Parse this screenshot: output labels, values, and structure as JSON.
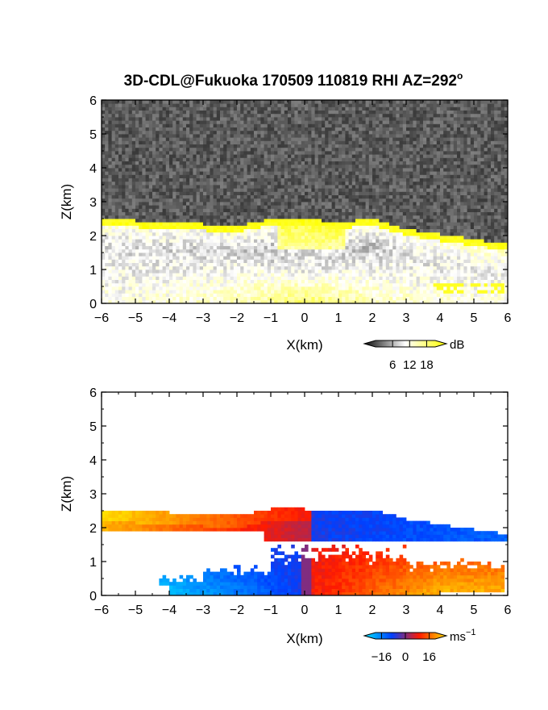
{
  "figure": {
    "title": "3D-CDL@Fukuoka 170509 110819 RHI AZ=292",
    "title_superscript": "o"
  },
  "chart_data": [
    {
      "type": "heatmap",
      "panel": "top",
      "quantity": "intensity",
      "xlabel": "X(km)",
      "ylabel": "Z(km)",
      "xlim": [
        -6,
        6
      ],
      "ylim": [
        0,
        6
      ],
      "x_ticks": [
        -6,
        -5,
        -4,
        -3,
        -2,
        -1,
        0,
        1,
        2,
        3,
        4,
        5,
        6
      ],
      "y_ticks": [
        0,
        1,
        2,
        3,
        4,
        5,
        6
      ],
      "colorbar": {
        "unit": "dB",
        "tick_labels": [
          "6",
          "12",
          "18"
        ],
        "tick_values": [
          6,
          12,
          18
        ],
        "range": [
          0,
          21
        ],
        "colors": [
          "#0a0a0a",
          "#ffffff",
          "#ffff00"
        ]
      },
      "layer_top_km": [
        [
          -6,
          2.5
        ],
        [
          -4,
          2.4
        ],
        [
          -2,
          2.3
        ],
        [
          -1,
          2.5
        ],
        [
          0,
          2.5
        ],
        [
          1,
          2.4
        ],
        [
          2,
          2.5
        ],
        [
          3,
          2.2
        ],
        [
          4,
          2.05
        ],
        [
          5,
          1.9
        ],
        [
          6,
          1.75
        ]
      ],
      "saturated_layer_thickness_km": 0.15,
      "cloud_blob_km": {
        "x": [
          -0.8,
          1.2
        ],
        "z": [
          1.6,
          2.5
        ]
      }
    },
    {
      "type": "heatmap",
      "panel": "bottom",
      "quantity": "radial velocity",
      "xlabel": "X(km)",
      "ylabel": "Z(km)",
      "xlim": [
        -6,
        6
      ],
      "ylim": [
        0,
        6
      ],
      "x_ticks": [
        -6,
        -5,
        -4,
        -3,
        -2,
        -1,
        0,
        1,
        2,
        3,
        4,
        5,
        6
      ],
      "y_ticks": [
        0,
        1,
        2,
        3,
        4,
        5,
        6
      ],
      "colorbar": {
        "unit": "ms",
        "unit_exponent": "−1",
        "tick_labels": [
          "−16",
          "0",
          "16"
        ],
        "tick_values": [
          -16,
          0,
          16
        ],
        "range": [
          -20,
          20
        ],
        "colors": [
          "#00e5ff",
          "#0040ff",
          "#ff1a00",
          "#ffe000"
        ]
      },
      "upper_layer_km": {
        "z": [
          1.65,
          2.6
        ]
      },
      "lower_layer_km": {
        "z": [
          0.05,
          1.6
        ]
      }
    }
  ]
}
